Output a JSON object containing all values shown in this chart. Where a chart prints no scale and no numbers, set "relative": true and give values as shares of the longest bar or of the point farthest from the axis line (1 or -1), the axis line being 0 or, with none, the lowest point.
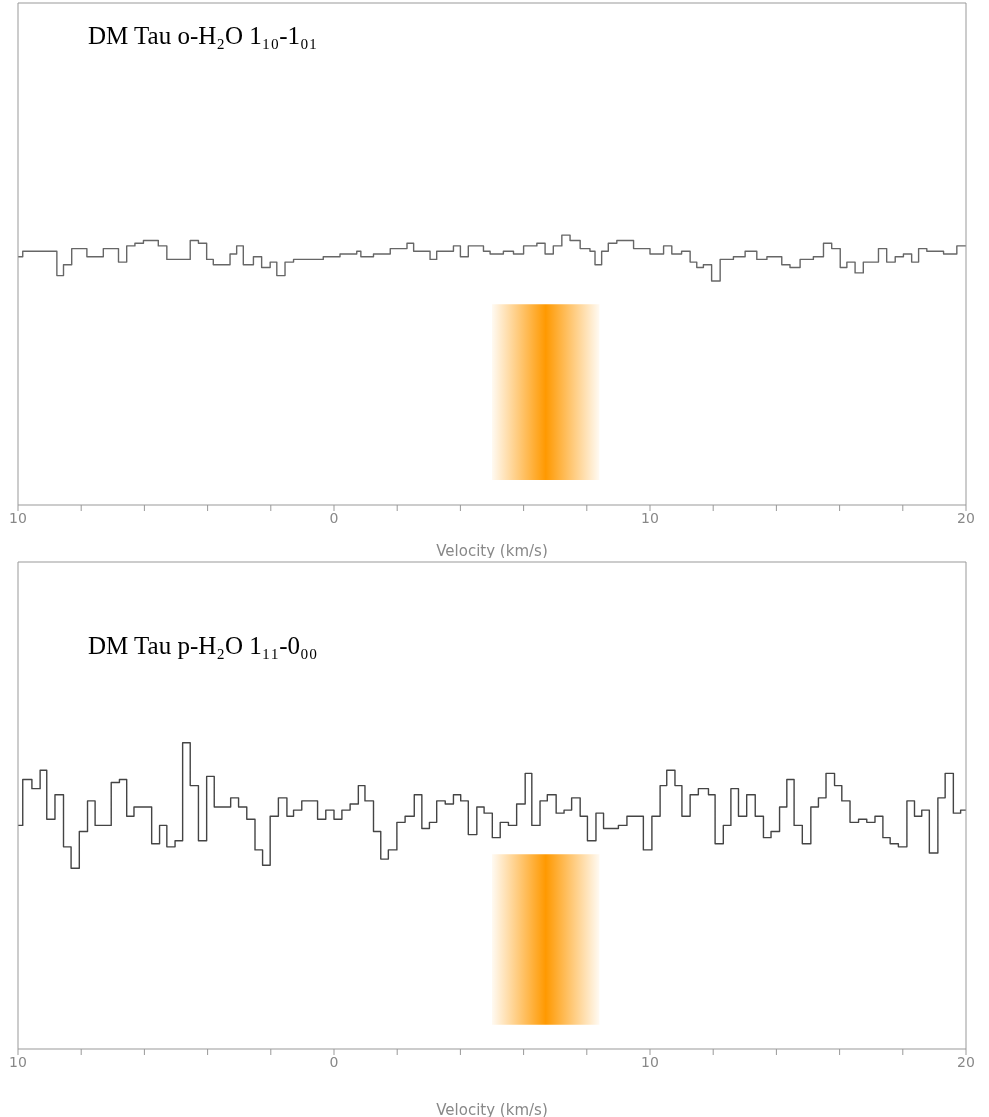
{
  "chart_data": [
    {
      "type": "step",
      "title": "DM Tau o-H₂O 1₁₀-1₀₁",
      "xlabel": "Velocity (km/s)",
      "relative": true,
      "xlim": [
        -10,
        20
      ],
      "xticks": [
        {
          "value": -10,
          "label": "10"
        },
        {
          "value": -8,
          "label": null
        },
        {
          "value": -6,
          "label": null
        },
        {
          "value": -4,
          "label": null
        },
        {
          "value": -2,
          "label": null
        },
        0,
        {
          "value": 2,
          "label": null
        },
        {
          "value": 4,
          "label": null
        },
        {
          "value": 6,
          "label": null
        },
        {
          "value": 8,
          "label": null
        },
        10,
        {
          "value": 12,
          "label": null
        },
        {
          "value": 14,
          "label": null
        },
        {
          "value": 16,
          "label": null
        },
        {
          "value": 18,
          "label": null
        },
        20
      ],
      "bands": [
        {
          "axis": "x",
          "from": 5,
          "to": 8.4,
          "color": "#ff9900"
        }
      ],
      "series": [
        {
          "color": "#666666",
          "x": [
            -10,
            -9.85,
            -8.77,
            -8.56,
            -8.3,
            -7.82,
            -7.3,
            -6.82,
            -6.56,
            -6.3,
            -6.03,
            -5.56,
            -5.29,
            -4.55,
            -4.29,
            -4.03,
            -3.82,
            -3.29,
            -3.08,
            -2.87,
            -2.55,
            -2.29,
            -2.02,
            -1.81,
            -1.55,
            -1.28,
            -0.34,
            0.19,
            0.72,
            0.85,
            1.25,
            1.78,
            2.31,
            2.52,
            3.04,
            3.25,
            3.78,
            4.0,
            4.25,
            4.73,
            4.94,
            5.36,
            5.68,
            6.0,
            6.42,
            6.68,
            6.94,
            7.21,
            7.47,
            7.79,
            8.1,
            8.26,
            8.47,
            8.68,
            8.95,
            9.48,
            10.0,
            10.43,
            10.69,
            11.0,
            11.27,
            11.48,
            11.69,
            11.95,
            12.22,
            12.64,
            13.01,
            13.38,
            13.7,
            14.17,
            14.43,
            14.75,
            15.17,
            15.49,
            15.75,
            16.02,
            16.23,
            16.49,
            16.75,
            17.23,
            17.49,
            17.76,
            18.02,
            18.28,
            18.5,
            18.76,
            19.29,
            19.71,
            20
          ],
          "values": [
            0.92,
            0.94,
            0.85,
            0.89,
            0.95,
            0.92,
            0.95,
            0.9,
            0.96,
            0.97,
            0.98,
            0.96,
            0.91,
            0.98,
            0.97,
            0.91,
            0.89,
            0.93,
            0.96,
            0.89,
            0.92,
            0.88,
            0.9,
            0.85,
            0.9,
            0.91,
            0.92,
            0.93,
            0.94,
            0.92,
            0.93,
            0.95,
            0.97,
            0.94,
            0.91,
            0.94,
            0.96,
            0.92,
            0.96,
            0.94,
            0.93,
            0.94,
            0.93,
            0.96,
            0.97,
            0.93,
            0.96,
            1.0,
            0.98,
            0.95,
            0.94,
            0.89,
            0.94,
            0.97,
            0.98,
            0.95,
            0.93,
            0.96,
            0.93,
            0.94,
            0.9,
            0.88,
            0.89,
            0.83,
            0.91,
            0.92,
            0.94,
            0.91,
            0.92,
            0.89,
            0.88,
            0.91,
            0.92,
            0.97,
            0.95,
            0.88,
            0.9,
            0.86,
            0.9,
            0.95,
            0.9,
            0.92,
            0.93,
            0.9,
            0.95,
            0.94,
            0.93,
            0.96,
            0.96
          ]
        }
      ]
    },
    {
      "type": "step",
      "title": "DM Tau p-H₂O 1₁₁-0₀₀",
      "xlabel": "Velocity (km/s)",
      "relative": true,
      "xlim": [
        -10,
        20
      ],
      "xticks": [
        {
          "value": -10,
          "label": "10"
        },
        {
          "value": -8,
          "label": null
        },
        {
          "value": -6,
          "label": null
        },
        {
          "value": -4,
          "label": null
        },
        {
          "value": -2,
          "label": null
        },
        0,
        {
          "value": 2,
          "label": null
        },
        {
          "value": 4,
          "label": null
        },
        {
          "value": 6,
          "label": null
        },
        {
          "value": 8,
          "label": null
        },
        10,
        {
          "value": 12,
          "label": null
        },
        {
          "value": 14,
          "label": null
        },
        {
          "value": 16,
          "label": null
        },
        {
          "value": 18,
          "label": null
        },
        20
      ],
      "bands": [
        {
          "axis": "x",
          "from": 5,
          "to": 8.4,
          "color": "#ff9900"
        }
      ],
      "series": [
        {
          "color": "#444444",
          "x": [
            -10,
            -9.85,
            -9.56,
            -9.3,
            -9.09,
            -8.83,
            -8.56,
            -8.32,
            -8.06,
            -7.8,
            -7.56,
            -7.3,
            -7.05,
            -6.79,
            -6.56,
            -6.33,
            -5.77,
            -5.52,
            -5.29,
            -5.03,
            -4.79,
            -4.55,
            -4.29,
            -4.03,
            -3.79,
            -3.27,
            -3.02,
            -2.76,
            -2.5,
            -2.26,
            -2.02,
            -1.76,
            -1.49,
            -1.28,
            -1.02,
            -0.52,
            -0.26,
            0.0,
            0.25,
            0.51,
            0.77,
            0.98,
            1.25,
            1.48,
            1.72,
            1.99,
            2.25,
            2.54,
            2.78,
            3.02,
            3.25,
            3.52,
            3.78,
            4.01,
            4.25,
            4.52,
            4.75,
            5.01,
            5.26,
            5.52,
            5.78,
            6.05,
            6.26,
            6.52,
            6.75,
            7.03,
            7.28,
            7.52,
            7.79,
            8.02,
            8.29,
            8.53,
            9.0,
            9.27,
            9.79,
            10.06,
            10.32,
            10.53,
            10.79,
            11.01,
            11.27,
            11.53,
            11.85,
            12.06,
            12.32,
            12.56,
            12.8,
            13.06,
            13.33,
            13.59,
            13.83,
            14.1,
            14.33,
            14.56,
            14.82,
            15.09,
            15.33,
            15.57,
            15.84,
            16.07,
            16.33,
            16.6,
            16.86,
            17.12,
            17.37,
            17.6,
            17.86,
            18.13,
            18.37,
            18.6,
            18.84,
            19.11,
            19.34,
            19.6,
            19.83,
            20
          ],
          "values": [
            0.73,
            0.88,
            0.85,
            0.91,
            0.75,
            0.83,
            0.66,
            0.59,
            0.71,
            0.81,
            0.73,
            0.73,
            0.87,
            0.88,
            0.76,
            0.79,
            0.67,
            0.73,
            0.66,
            0.68,
            1.0,
            0.86,
            0.68,
            0.89,
            0.79,
            0.82,
            0.79,
            0.75,
            0.65,
            0.6,
            0.76,
            0.82,
            0.76,
            0.78,
            0.81,
            0.75,
            0.78,
            0.75,
            0.78,
            0.8,
            0.86,
            0.81,
            0.71,
            0.62,
            0.65,
            0.74,
            0.76,
            0.83,
            0.72,
            0.74,
            0.81,
            0.8,
            0.83,
            0.81,
            0.7,
            0.79,
            0.77,
            0.69,
            0.74,
            0.73,
            0.8,
            0.9,
            0.73,
            0.81,
            0.83,
            0.77,
            0.78,
            0.82,
            0.76,
            0.68,
            0.77,
            0.72,
            0.73,
            0.76,
            0.65,
            0.76,
            0.86,
            0.91,
            0.86,
            0.76,
            0.83,
            0.85,
            0.83,
            0.67,
            0.73,
            0.85,
            0.76,
            0.83,
            0.76,
            0.69,
            0.71,
            0.79,
            0.88,
            0.73,
            0.67,
            0.79,
            0.82,
            0.9,
            0.86,
            0.81,
            0.74,
            0.75,
            0.74,
            0.76,
            0.69,
            0.67,
            0.66,
            0.81,
            0.76,
            0.78,
            0.64,
            0.82,
            0.9,
            0.77,
            0.78,
            0.78
          ]
        }
      ]
    }
  ]
}
